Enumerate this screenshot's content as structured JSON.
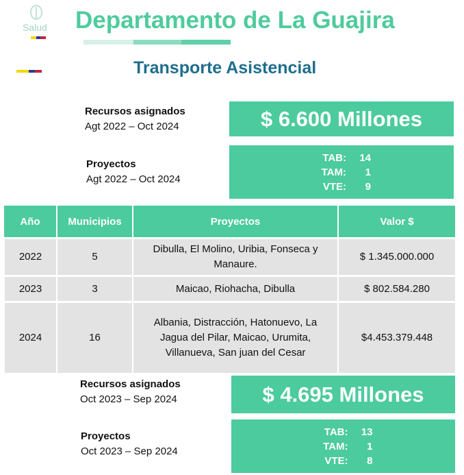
{
  "logo": {
    "text": "Salud"
  },
  "header": {
    "title": "Departamento de La Guajira",
    "subtitle": "Transporte Asistencial"
  },
  "colors": {
    "accent": "#4ccb9e",
    "subtitle": "#1f6e8c",
    "row": "#e3e3e3"
  },
  "top": {
    "recursos_label": "Recursos asignados",
    "recursos_period": "Agt 2022 – Oct 2024",
    "recursos_value": "$ 6.600 Millones",
    "proyectos_label": "Proyectos",
    "proyectos_period": "Agt 2022 – Oct 2024",
    "stats": [
      {
        "k": "TAB:",
        "v": "14"
      },
      {
        "k": "TAM:",
        "v": "1"
      },
      {
        "k": "VTE:",
        "v": "9"
      }
    ]
  },
  "table": {
    "headers": [
      "Año",
      "Municipios",
      "Proyectos",
      "Valor $"
    ],
    "rows": [
      [
        "2022",
        "5",
        "Dibulla, El Molino, Uribia, Fonseca y Manaure.",
        "$ 1.345.000.000"
      ],
      [
        "2023",
        "3",
        "Maicao, Riohacha, Dibulla",
        "$ 802.584.280"
      ],
      [
        "2024",
        "16",
        "Albania, Distracción, Hatonuevo, La Jagua del Pilar, Maicao, Urumita, Villanueva, San juan del Cesar",
        "$4.453.379.448"
      ]
    ]
  },
  "bottom": {
    "recursos_label": "Recursos asignados",
    "recursos_period": "Oct 2023 – Sep 2024",
    "recursos_value": "$ 4.695 Millones",
    "proyectos_label": "Proyectos",
    "proyectos_period": "Oct 2023 – Sep 2024",
    "stats": [
      {
        "k": "TAB:",
        "v": "13"
      },
      {
        "k": "TAM:",
        "v": "1"
      },
      {
        "k": "VTE:",
        "v": "8"
      }
    ]
  }
}
